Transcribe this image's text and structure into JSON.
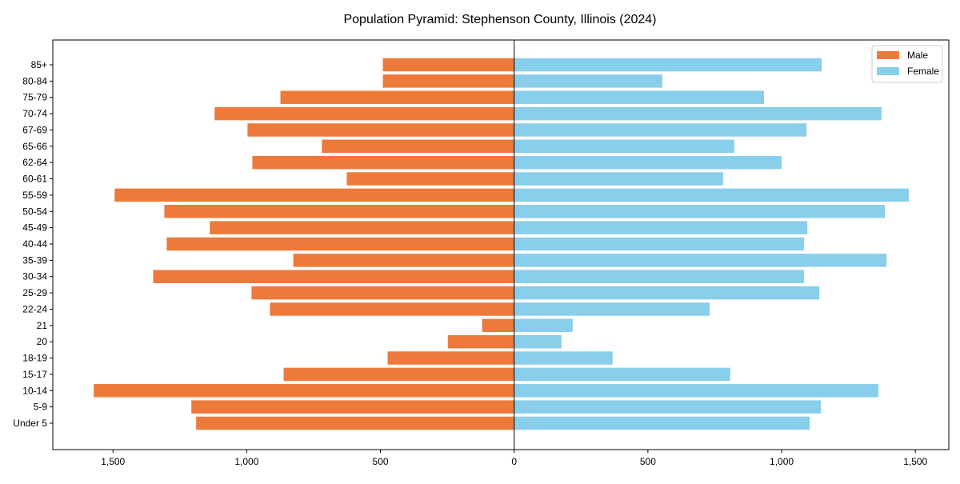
{
  "chart_data": {
    "type": "bar",
    "orientation": "horizontal-pyramid",
    "title": "Population Pyramid: Stephenson County, Illinois (2024)",
    "xlabel": "",
    "ylabel": "",
    "xlim": [
      -1725,
      1625
    ],
    "xticks": [
      -1500,
      -1000,
      -500,
      0,
      500,
      1000,
      1500
    ],
    "xtick_labels": [
      "1,500",
      "1,000",
      "500",
      "0",
      "500",
      "1,000",
      "1,500"
    ],
    "categories": [
      "Under 5",
      "5-9",
      "10-14",
      "15-17",
      "18-19",
      "20",
      "21",
      "22-24",
      "25-29",
      "30-34",
      "35-39",
      "40-44",
      "45-49",
      "50-54",
      "55-59",
      "60-61",
      "62-64",
      "65-66",
      "67-69",
      "70-74",
      "75-79",
      "80-84",
      "85+"
    ],
    "series": [
      {
        "name": "Male",
        "color": "#ed7a3a",
        "values": [
          1189,
          1207,
          1572,
          862,
          473,
          248,
          120,
          913,
          982,
          1350,
          826,
          1299,
          1138,
          1308,
          1494,
          626,
          979,
          719,
          997,
          1120,
          874,
          491,
          491
        ]
      },
      {
        "name": "Female",
        "color": "#89ceea",
        "values": [
          1105,
          1147,
          1362,
          808,
          368,
          177,
          219,
          731,
          1141,
          1084,
          1392,
          1084,
          1096,
          1386,
          1476,
          781,
          1000,
          823,
          1093,
          1374,
          934,
          554,
          1150
        ]
      }
    ],
    "legend_position": "top-right",
    "grid": false
  }
}
